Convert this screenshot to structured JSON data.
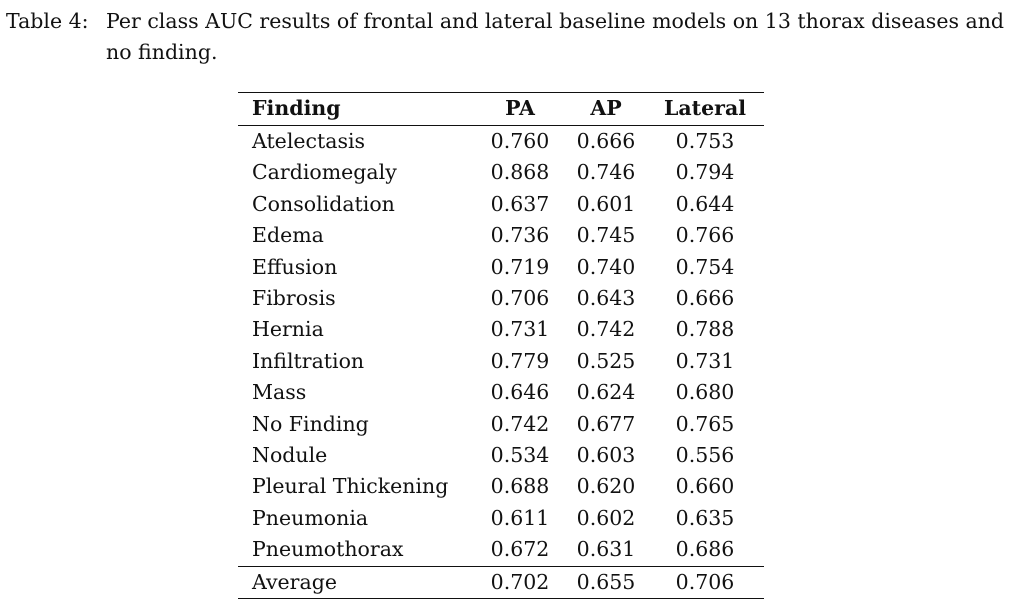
{
  "caption": {
    "label": "Table 4:",
    "text": "Per class AUC results of frontal and lateral baseline models on 13 thorax diseases and no finding."
  },
  "table": {
    "columns": [
      "Finding",
      "PA",
      "AP",
      "Lateral"
    ],
    "rows": [
      {
        "finding": "Atelectasis",
        "pa": "0.760",
        "ap": "0.666",
        "lateral": "0.753"
      },
      {
        "finding": "Cardiomegaly",
        "pa": "0.868",
        "ap": "0.746",
        "lateral": "0.794"
      },
      {
        "finding": "Consolidation",
        "pa": "0.637",
        "ap": "0.601",
        "lateral": "0.644"
      },
      {
        "finding": "Edema",
        "pa": "0.736",
        "ap": "0.745",
        "lateral": "0.766"
      },
      {
        "finding": "Effusion",
        "pa": "0.719",
        "ap": "0.740",
        "lateral": "0.754"
      },
      {
        "finding": "Fibrosis",
        "pa": "0.706",
        "ap": "0.643",
        "lateral": "0.666"
      },
      {
        "finding": "Hernia",
        "pa": "0.731",
        "ap": "0.742",
        "lateral": "0.788"
      },
      {
        "finding": "Infiltration",
        "pa": "0.779",
        "ap": "0.525",
        "lateral": "0.731"
      },
      {
        "finding": "Mass",
        "pa": "0.646",
        "ap": "0.624",
        "lateral": "0.680"
      },
      {
        "finding": "No Finding",
        "pa": "0.742",
        "ap": "0.677",
        "lateral": "0.765"
      },
      {
        "finding": "Nodule",
        "pa": "0.534",
        "ap": "0.603",
        "lateral": "0.556"
      },
      {
        "finding": "Pleural Thickening",
        "pa": "0.688",
        "ap": "0.620",
        "lateral": "0.660"
      },
      {
        "finding": "Pneumonia",
        "pa": "0.611",
        "ap": "0.602",
        "lateral": "0.635"
      },
      {
        "finding": "Pneumothorax",
        "pa": "0.672",
        "ap": "0.631",
        "lateral": "0.686"
      }
    ],
    "average": {
      "finding": "Average",
      "pa": "0.702",
      "ap": "0.655",
      "lateral": "0.706"
    }
  }
}
